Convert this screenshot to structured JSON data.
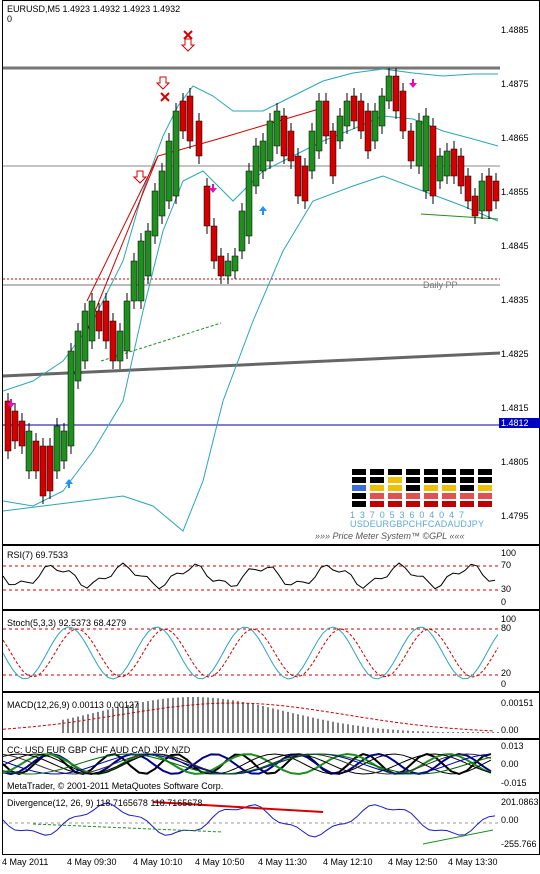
{
  "main": {
    "header_line1": "EURUSD,M5  1.4923 1.4932 1.4923 1.4932",
    "header_line2": "0",
    "price_ticks": [
      "1.4885",
      "1.4875",
      "1.4865",
      "1.4855",
      "1.4845",
      "1.4835",
      "1.4825",
      "1.4815",
      "1.4805",
      "1.4795"
    ],
    "current_price": "1.4812",
    "daily_pp_label": "Daily PP",
    "price_meter": {
      "digits": "1 3 7 0 5 3 6 0 4 0 4 7",
      "currencies": "USDEURGBPCHFCADAUDJPY",
      "title": "»»» Price Meter System™ ©GPL «««"
    }
  },
  "rsi": {
    "label": "RSI(7) 69.7533",
    "ticks": [
      "100",
      "70",
      "30",
      "0"
    ]
  },
  "stoch": {
    "label": "Stoch(5,3,3) 92.5373 68.4279",
    "ticks": [
      "100",
      "80",
      "20",
      "0"
    ]
  },
  "macd": {
    "label": "MACD(12,26,9) 0.00113 0.00127",
    "ticks": [
      "0.00151",
      "0.00"
    ]
  },
  "cc": {
    "label": "CC:  USD EUR GBP CHF AUD CAD JPY NZD",
    "ticks": [
      "0.013",
      "0.00",
      "-0.015"
    ],
    "footer": "MetaTrader, © 2001-2011 MetaQuotes Software Corp."
  },
  "divergence": {
    "label": "Divergence(12, 26, 9) 118.7165678 118.7165678",
    "ticks": [
      "201.0863",
      "0.00",
      "-255.766"
    ]
  },
  "time_axis": [
    "4 May 2011",
    "4 May 09:30",
    "4 May 10:10",
    "4 May 10:50",
    "4 May 11:30",
    "4 May 12:10",
    "4 May 12:50",
    "4 May 13:30"
  ],
  "colors": {
    "bull": "#1f8f1f",
    "bear": "#d40000",
    "band": "#2aa7b4",
    "grid_red": "#cc0000"
  }
}
